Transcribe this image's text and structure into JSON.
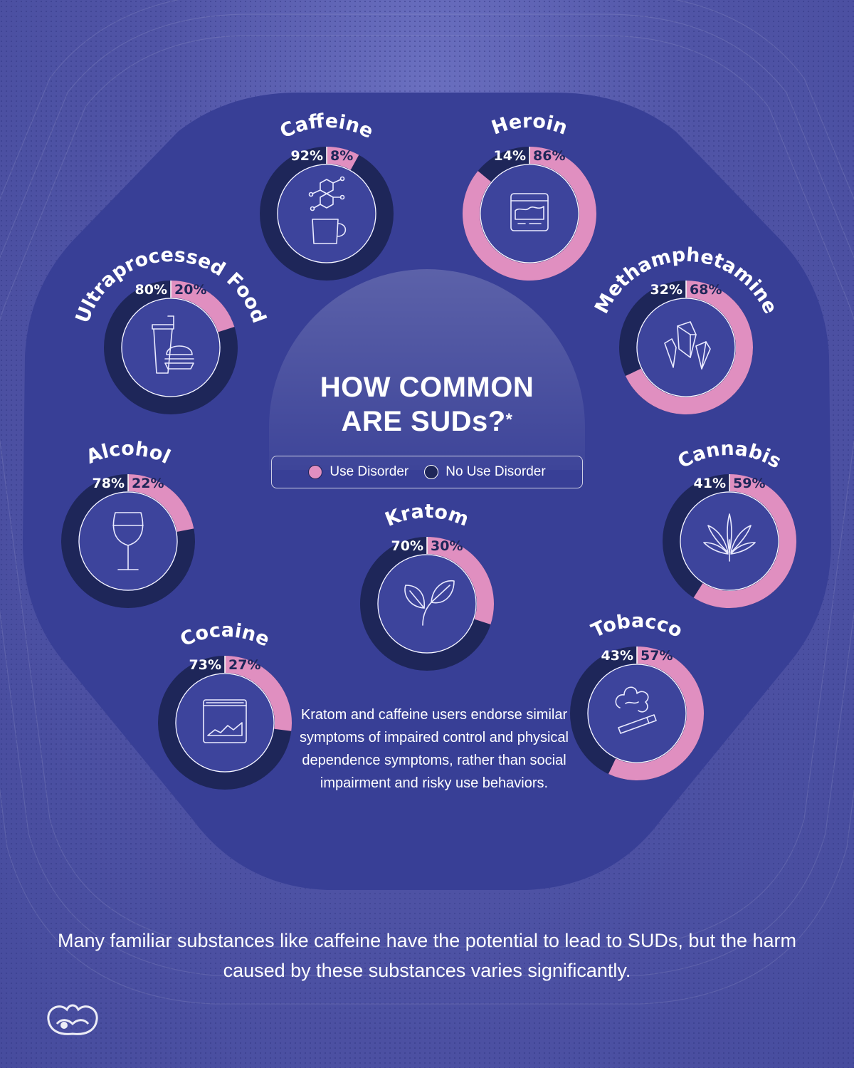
{
  "title_line1": "HOW COMMON",
  "title_line2": "ARE SUDs?",
  "title_mark": "*",
  "legend": {
    "use_disorder": "Use Disorder",
    "no_use_disorder": "No Use Disorder"
  },
  "colors": {
    "use_disorder": "#e08fc0",
    "no_use_disorder": "#1e2659",
    "panel": "#383f96",
    "background": "#4f54a6"
  },
  "note": "Kratom and caffeine users endorse similar symptoms of impaired control and physical dependence symptoms, rather than social impairment and risky use behaviors.",
  "footer": "Many familiar substances like caffeine have the potential to lead to SUDs, but the harm caused by these substances varies significantly.",
  "logo_icon": "brand-logo-icon",
  "chart_data": {
    "type": "pie",
    "legend": [
      "Use Disorder",
      "No Use Disorder"
    ],
    "legend_position": "center",
    "substances": [
      {
        "name": "Caffeine",
        "use_disorder": 8,
        "no_use_disorder": 92,
        "use_label": "8%",
        "no_label": "92%",
        "icon": "molecule-mug-icon"
      },
      {
        "name": "Heroin",
        "use_disorder": 86,
        "no_use_disorder": 14,
        "use_label": "86%",
        "no_label": "14%",
        "icon": "baggie-icon"
      },
      {
        "name": "Methamphetamine",
        "use_disorder": 68,
        "no_use_disorder": 32,
        "use_label": "68%",
        "no_label": "32%",
        "icon": "crystals-icon"
      },
      {
        "name": "Cannabis",
        "use_disorder": 59,
        "no_use_disorder": 41,
        "use_label": "59%",
        "no_label": "41%",
        "icon": "cannabis-leaf-icon"
      },
      {
        "name": "Tobacco",
        "use_disorder": 57,
        "no_use_disorder": 43,
        "use_label": "57%",
        "no_label": "43%",
        "icon": "cigarette-icon"
      },
      {
        "name": "Cocaine",
        "use_disorder": 27,
        "no_use_disorder": 73,
        "use_label": "27%",
        "no_label": "73%",
        "icon": "powder-bag-icon"
      },
      {
        "name": "Alcohol",
        "use_disorder": 22,
        "no_use_disorder": 78,
        "use_label": "22%",
        "no_label": "78%",
        "icon": "wine-glass-icon"
      },
      {
        "name": "Ultraprocessed Food",
        "use_disorder": 20,
        "no_use_disorder": 80,
        "use_label": "20%",
        "no_label": "80%",
        "icon": "soda-burger-icon"
      },
      {
        "name": "Kratom",
        "use_disorder": 30,
        "no_use_disorder": 70,
        "use_label": "30%",
        "no_label": "70%",
        "icon": "leaves-icon"
      }
    ]
  }
}
